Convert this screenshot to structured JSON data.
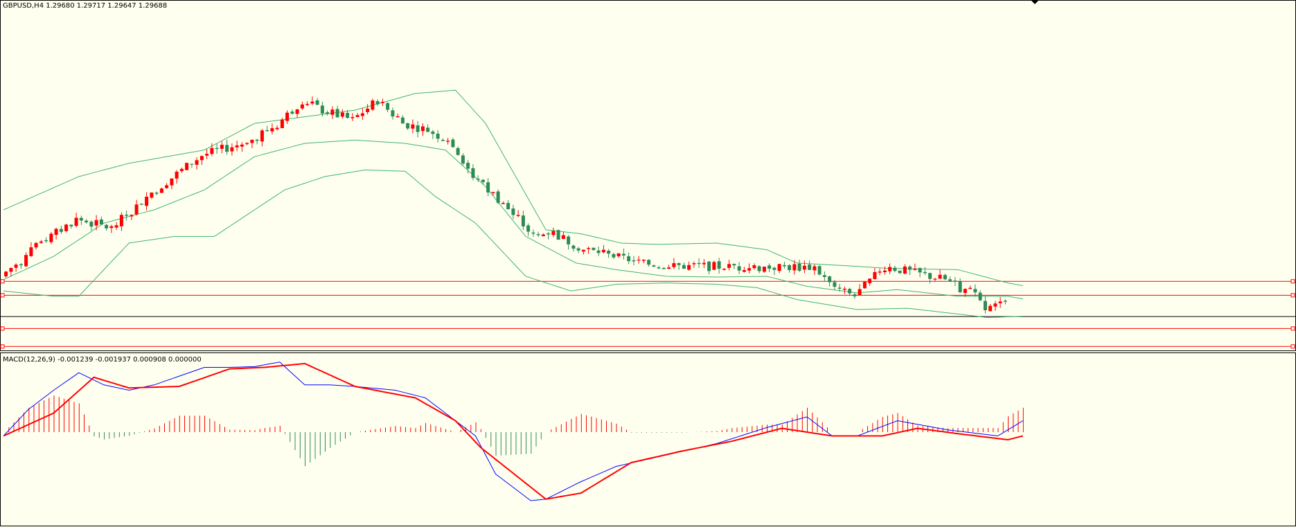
{
  "price_panel": {
    "title": "GBPUSD,H4  1.29680 1.29717 1.29647 1.29688"
  },
  "macd_panel": {
    "title": "MACD(12,26,9) -0.001239 -0.001937 0.000908 0.000000"
  },
  "colors": {
    "background": "#fffff0",
    "bull_candle": "#ff0000",
    "bear_candle": "#2e8b57",
    "bollinger": "#3cb371",
    "level_line": "#ff0000",
    "current_price_line": "#000000",
    "macd_line": "#0000ff",
    "signal_line": "#ff0000",
    "hist_positive": "#ff0000",
    "hist_negative": "#2e8b57",
    "panel_border": "#000000"
  },
  "chart_data": [
    {
      "type": "candlestick",
      "symbol": "GBPUSD",
      "timeframe": "H4",
      "ylim": [
        0,
        500
      ],
      "bars": 200,
      "close_anchors": [
        [
          0,
          100
        ],
        [
          8,
          150
        ],
        [
          15,
          186
        ],
        [
          22,
          172
        ],
        [
          30,
          226
        ],
        [
          40,
          282
        ],
        [
          48,
          300
        ],
        [
          55,
          328
        ],
        [
          60,
          365
        ],
        [
          64,
          350
        ],
        [
          70,
          335
        ],
        [
          75,
          365
        ],
        [
          80,
          330
        ],
        [
          85,
          320
        ],
        [
          90,
          300
        ],
        [
          94,
          250
        ],
        [
          100,
          210
        ],
        [
          106,
          160
        ],
        [
          110,
          165
        ],
        [
          116,
          140
        ],
        [
          122,
          130
        ],
        [
          128,
          120
        ],
        [
          134,
          115
        ],
        [
          140,
          115
        ],
        [
          146,
          114
        ],
        [
          150,
          113
        ],
        [
          156,
          114
        ],
        [
          162,
          114
        ],
        [
          166,
          80
        ],
        [
          170,
          70
        ],
        [
          176,
          115
        ],
        [
          182,
          105
        ],
        [
          188,
          95
        ],
        [
          194,
          70
        ],
        [
          196,
          50
        ],
        [
          202,
          62
        ],
        [
          209,
          64
        ]
      ],
      "bollinger_upper_anchors": [
        [
          0,
          200
        ],
        [
          15,
          250
        ],
        [
          25,
          270
        ],
        [
          40,
          290
        ],
        [
          50,
          330
        ],
        [
          60,
          340
        ],
        [
          70,
          350
        ],
        [
          82,
          375
        ],
        [
          90,
          380
        ],
        [
          96,
          330
        ],
        [
          108,
          170
        ],
        [
          115,
          164
        ],
        [
          123,
          150
        ],
        [
          130,
          148
        ],
        [
          142,
          150
        ],
        [
          152,
          140
        ],
        [
          158,
          120
        ],
        [
          170,
          115
        ],
        [
          176,
          112
        ],
        [
          190,
          110
        ],
        [
          200,
          90
        ],
        [
          203,
          86
        ]
      ],
      "bollinger_middle_anchors": [
        [
          0,
          95
        ],
        [
          10,
          130
        ],
        [
          20,
          180
        ],
        [
          30,
          200
        ],
        [
          40,
          230
        ],
        [
          50,
          280
        ],
        [
          60,
          300
        ],
        [
          70,
          305
        ],
        [
          80,
          300
        ],
        [
          88,
          290
        ],
        [
          96,
          235
        ],
        [
          104,
          160
        ],
        [
          114,
          120
        ],
        [
          122,
          110
        ],
        [
          132,
          100
        ],
        [
          142,
          99
        ],
        [
          152,
          100
        ],
        [
          160,
          85
        ],
        [
          170,
          75
        ],
        [
          178,
          80
        ],
        [
          190,
          70
        ],
        [
          200,
          70
        ],
        [
          203,
          66
        ]
      ],
      "bollinger_lower_anchors": [
        [
          0,
          78
        ],
        [
          10,
          70
        ],
        [
          15,
          70
        ],
        [
          25,
          150
        ],
        [
          34,
          160
        ],
        [
          42,
          160
        ],
        [
          48,
          190
        ],
        [
          56,
          230
        ],
        [
          64,
          250
        ],
        [
          72,
          260
        ],
        [
          80,
          258
        ],
        [
          86,
          220
        ],
        [
          94,
          180
        ],
        [
          104,
          100
        ],
        [
          113,
          78
        ],
        [
          122,
          88
        ],
        [
          132,
          90
        ],
        [
          142,
          88
        ],
        [
          150,
          83
        ],
        [
          158,
          65
        ],
        [
          170,
          50
        ],
        [
          180,
          52
        ],
        [
          196,
          38
        ],
        [
          203,
          40
        ]
      ],
      "horizontal_levels": [
        93,
        72
      ],
      "levels_low": [
        22,
        -5
      ],
      "current_price_level": 40
    },
    {
      "type": "macd",
      "params": [
        12,
        26,
        9
      ],
      "ylim": [
        -1,
        1
      ],
      "macd_anchors": [
        [
          0,
          -0.05
        ],
        [
          5,
          0.3
        ],
        [
          10,
          0.55
        ],
        [
          15,
          0.78
        ],
        [
          20,
          0.62
        ],
        [
          25,
          0.55
        ],
        [
          30,
          0.62
        ],
        [
          40,
          0.85
        ],
        [
          45,
          0.85
        ],
        [
          50,
          0.86
        ],
        [
          55,
          0.92
        ],
        [
          60,
          0.62
        ],
        [
          65,
          0.62
        ],
        [
          70,
          0.6
        ],
        [
          78,
          0.55
        ],
        [
          84,
          0.45
        ],
        [
          94,
          -0.05
        ],
        [
          98,
          -0.55
        ],
        [
          105,
          -0.9
        ],
        [
          108,
          -0.88
        ],
        [
          115,
          -0.65
        ],
        [
          122,
          -0.45
        ],
        [
          132,
          -0.3
        ],
        [
          142,
          -0.15
        ],
        [
          152,
          0.06
        ],
        [
          160,
          0.2
        ],
        [
          165,
          -0.05
        ],
        [
          170,
          -0.05
        ],
        [
          178,
          0.15
        ],
        [
          188,
          0.03
        ],
        [
          198,
          -0.05
        ],
        [
          203,
          0.15
        ]
      ],
      "signal_anchors": [
        [
          0,
          -0.05
        ],
        [
          10,
          0.25
        ],
        [
          18,
          0.72
        ],
        [
          25,
          0.58
        ],
        [
          35,
          0.6
        ],
        [
          45,
          0.83
        ],
        [
          52,
          0.85
        ],
        [
          60,
          0.9
        ],
        [
          70,
          0.6
        ],
        [
          82,
          0.45
        ],
        [
          90,
          0.15
        ],
        [
          95,
          -0.2
        ],
        [
          108,
          -0.88
        ],
        [
          115,
          -0.8
        ],
        [
          125,
          -0.4
        ],
        [
          135,
          -0.25
        ],
        [
          145,
          -0.12
        ],
        [
          155,
          0.05
        ],
        [
          165,
          -0.05
        ],
        [
          175,
          -0.05
        ],
        [
          182,
          0.05
        ],
        [
          190,
          -0.02
        ],
        [
          200,
          -0.1
        ],
        [
          203,
          -0.05
        ]
      ]
    }
  ]
}
